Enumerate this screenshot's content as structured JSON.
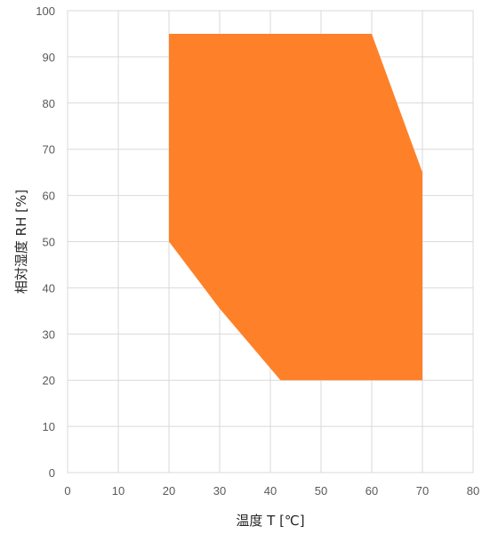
{
  "chart_data": {
    "type": "area",
    "xlabel": "温度 T [℃]",
    "ylabel": "相対湿度 RH [%]",
    "xlim": [
      0,
      80
    ],
    "ylim": [
      0,
      100
    ],
    "x_ticks": [
      0,
      10,
      20,
      30,
      40,
      50,
      60,
      70,
      80
    ],
    "y_ticks": [
      0,
      10,
      20,
      30,
      40,
      50,
      60,
      70,
      80,
      90,
      100
    ],
    "grid": true,
    "series": [
      {
        "fill_color": "#fe8129",
        "points": [
          {
            "x": 20,
            "y": 95
          },
          {
            "x": 60,
            "y": 95
          },
          {
            "x": 70,
            "y": 65
          },
          {
            "x": 70,
            "y": 20
          },
          {
            "x": 42,
            "y": 20
          },
          {
            "x": 30,
            "y": 35.5
          },
          {
            "x": 20,
            "y": 50
          }
        ]
      }
    ]
  }
}
